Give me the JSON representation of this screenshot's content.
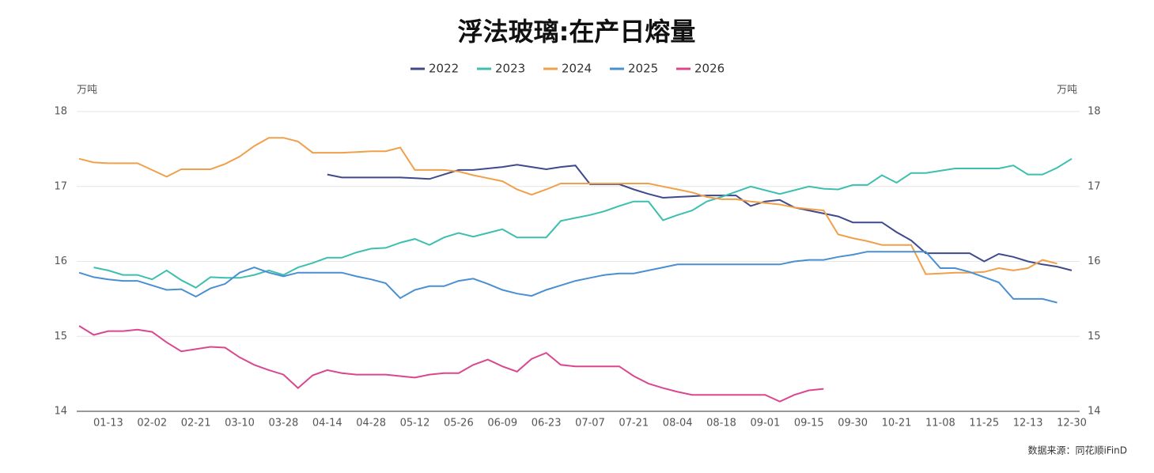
{
  "chart_data": {
    "type": "line",
    "title": "浮法玻璃:在产日熔量",
    "y_label": "万吨",
    "y2_label": "万吨",
    "source": "数据来源：同花顺iFinD",
    "categories": [
      null,
      null,
      "01-13",
      null,
      null,
      "02-02",
      null,
      null,
      "02-21",
      null,
      null,
      "03-10",
      null,
      null,
      "03-28",
      null,
      null,
      "04-14",
      null,
      null,
      "04-28",
      null,
      null,
      "05-12",
      null,
      null,
      "05-26",
      null,
      null,
      "06-09",
      null,
      null,
      "06-23",
      null,
      null,
      "07-07",
      null,
      null,
      "07-21",
      null,
      null,
      "08-04",
      null,
      null,
      "08-18",
      null,
      null,
      "09-01",
      null,
      null,
      "09-15",
      null,
      null,
      "09-30",
      null,
      null,
      "10-21",
      null,
      null,
      "11-08",
      null,
      null,
      "11-25",
      null,
      null,
      "12-13",
      null,
      null,
      "12-30"
    ],
    "ylim": [
      14,
      18
    ],
    "yticks": [
      14,
      15,
      16,
      17,
      18
    ],
    "y2lim": [
      14,
      18
    ],
    "y2ticks": [
      14,
      15,
      16,
      17,
      18
    ],
    "grid": true,
    "legend": "top",
    "series": [
      {
        "name": "2022",
        "color": "#3f4a8c",
        "values": [
          null,
          null,
          null,
          null,
          null,
          null,
          null,
          null,
          null,
          null,
          null,
          null,
          null,
          null,
          null,
          null,
          null,
          17.16,
          17.12,
          17.12,
          17.12,
          17.12,
          17.12,
          17.11,
          17.1,
          17.16,
          17.22,
          17.22,
          17.24,
          17.26,
          17.29,
          17.26,
          17.23,
          17.26,
          17.28,
          17.03,
          17.03,
          17.03,
          16.96,
          16.9,
          16.85,
          16.86,
          16.87,
          16.88,
          16.88,
          16.88,
          16.74,
          16.8,
          16.82,
          16.72,
          16.68,
          16.64,
          16.6,
          16.52,
          16.52,
          16.52,
          16.39,
          16.28,
          16.11,
          16.11,
          16.11,
          16.11,
          16.0,
          16.1,
          16.06,
          16.0,
          15.96,
          15.93,
          15.88
        ]
      },
      {
        "name": "2023",
        "color": "#3dbfb0",
        "values": [
          null,
          15.92,
          15.88,
          15.82,
          15.82,
          15.76,
          15.88,
          15.75,
          15.65,
          15.79,
          15.78,
          15.78,
          15.82,
          15.88,
          15.82,
          15.92,
          15.98,
          16.05,
          16.05,
          16.12,
          16.17,
          16.18,
          16.25,
          16.3,
          16.22,
          16.32,
          16.38,
          16.33,
          16.38,
          16.43,
          16.32,
          16.32,
          16.32,
          16.54,
          16.58,
          16.62,
          16.67,
          16.74,
          16.8,
          16.8,
          16.55,
          16.62,
          16.68,
          16.8,
          16.86,
          16.93,
          17.0,
          16.95,
          16.9,
          16.95,
          17.0,
          16.97,
          16.96,
          17.02,
          17.02,
          17.15,
          17.05,
          17.18,
          17.18,
          17.21,
          17.24,
          17.24,
          17.24,
          17.24,
          17.28,
          17.16,
          17.16,
          17.25,
          17.37
        ]
      },
      {
        "name": "2024",
        "color": "#f0a04b",
        "values": [
          17.37,
          17.32,
          17.31,
          17.31,
          17.31,
          17.22,
          17.13,
          17.23,
          17.23,
          17.23,
          17.3,
          17.4,
          17.54,
          17.65,
          17.65,
          17.6,
          17.45,
          17.45,
          17.45,
          17.46,
          17.47,
          17.47,
          17.52,
          17.22,
          17.22,
          17.22,
          17.2,
          17.15,
          17.11,
          17.07,
          16.96,
          16.89,
          16.96,
          17.04,
          17.04,
          17.04,
          17.04,
          17.04,
          17.04,
          17.04,
          17.0,
          16.96,
          16.92,
          16.86,
          16.83,
          16.83,
          16.8,
          16.78,
          16.76,
          16.72,
          16.7,
          16.68,
          16.36,
          16.31,
          16.27,
          16.22,
          16.22,
          16.22,
          15.83,
          15.84,
          15.85,
          15.85,
          15.86,
          15.91,
          15.88,
          15.91,
          16.02,
          15.97,
          null
        ]
      },
      {
        "name": "2025",
        "color": "#4a8fd1",
        "values": [
          15.85,
          15.79,
          15.76,
          15.74,
          15.74,
          15.68,
          15.62,
          15.63,
          15.53,
          15.64,
          15.7,
          15.85,
          15.92,
          15.85,
          15.8,
          15.85,
          15.85,
          15.85,
          15.85,
          15.8,
          15.76,
          15.71,
          15.51,
          15.62,
          15.67,
          15.67,
          15.74,
          15.77,
          15.7,
          15.62,
          15.57,
          15.54,
          15.62,
          15.68,
          15.74,
          15.78,
          15.82,
          15.84,
          15.84,
          15.88,
          15.92,
          15.96,
          15.96,
          15.96,
          15.96,
          15.96,
          15.96,
          15.96,
          15.96,
          16.0,
          16.02,
          16.02,
          16.06,
          16.09,
          16.13,
          16.13,
          16.13,
          16.13,
          16.13,
          15.91,
          15.91,
          15.86,
          15.79,
          15.72,
          15.5,
          15.5,
          15.5,
          15.45,
          null
        ]
      },
      {
        "name": "2026",
        "color": "#d9488f",
        "values": [
          15.14,
          15.02,
          15.07,
          15.07,
          15.09,
          15.06,
          14.92,
          14.8,
          14.83,
          14.86,
          14.85,
          14.72,
          14.62,
          14.55,
          14.49,
          14.31,
          14.48,
          14.55,
          14.51,
          14.49,
          14.49,
          14.49,
          14.47,
          14.45,
          14.49,
          14.51,
          14.51,
          14.62,
          14.69,
          14.6,
          14.53,
          14.7,
          14.78,
          14.62,
          14.6,
          14.6,
          14.6,
          14.6,
          14.47,
          14.37,
          14.31,
          14.26,
          14.22,
          14.22,
          14.22,
          14.22,
          14.22,
          14.22,
          14.13,
          14.22,
          14.28,
          14.3,
          null,
          null,
          null,
          null,
          null,
          null,
          null,
          null,
          null,
          null,
          null,
          null,
          null,
          null,
          null,
          null,
          null
        ]
      }
    ]
  }
}
